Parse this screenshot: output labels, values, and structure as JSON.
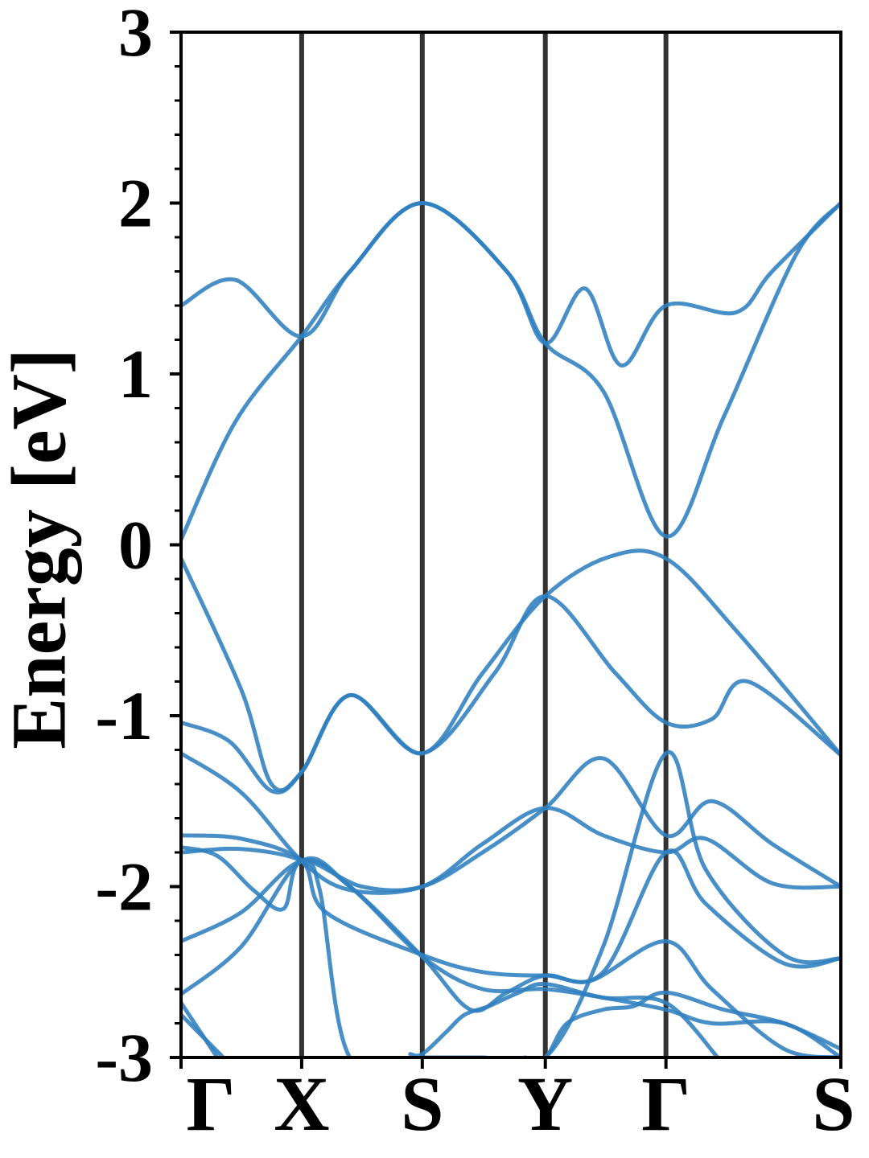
{
  "chart_data": {
    "type": "line",
    "xlabel": "",
    "ylabel": "Energy [eV]",
    "ylim": [
      -3,
      3
    ],
    "xlim": [
      0,
      5.47
    ],
    "y_ticks": [
      -3,
      -2,
      -1,
      0,
      1,
      2,
      3
    ],
    "y_tick_labels": [
      "-3",
      "-2",
      "-1",
      "0",
      "1",
      "2",
      "3"
    ],
    "minor_y_step": 0.2,
    "x_ticks": [
      0,
      1,
      2,
      3.02,
      4.02,
      5.47
    ],
    "x_tick_labels": [
      "Γ",
      "X",
      "S",
      "Y",
      "Γ",
      "S"
    ],
    "divider_lines": [
      1,
      2,
      3.02,
      4.02
    ],
    "grid": false,
    "legend": "none",
    "colors": {
      "band": "#2f7fbf",
      "divider": "#333333",
      "axis": "#000000"
    },
    "series": [
      {
        "x": [
          0,
          0.45,
          1.0,
          1.4,
          2.0,
          2.7,
          3.02,
          3.5,
          4.02,
          4.5,
          5.1,
          5.47
        ],
        "y": [
          1.4,
          1.55,
          1.22,
          1.6,
          2.0,
          1.6,
          1.18,
          0.9,
          0.05,
          0.75,
          1.7,
          2.0
        ]
      },
      {
        "x": [
          0,
          0.45,
          1.0,
          1.4,
          2.0,
          2.7,
          3.02,
          3.35,
          3.65,
          4.02,
          4.6,
          4.9,
          5.47
        ],
        "y": [
          0.03,
          0.72,
          1.22,
          1.6,
          2.0,
          1.6,
          1.18,
          1.5,
          1.05,
          1.4,
          1.36,
          1.6,
          2.0
        ]
      },
      {
        "x": [
          0,
          0.5,
          0.75,
          1.0,
          1.4,
          2.0,
          2.5,
          3.02,
          3.55,
          4.02,
          4.6,
          5.47
        ],
        "y": [
          -0.08,
          -0.85,
          -1.4,
          -1.33,
          -0.88,
          -1.22,
          -0.75,
          -0.3,
          -0.07,
          -0.08,
          -0.5,
          -1.23
        ]
      },
      {
        "x": [
          0,
          0.4,
          0.75,
          1.0,
          1.4,
          2.0,
          2.6,
          3.02,
          3.6,
          4.02,
          4.4,
          4.7,
          5.47
        ],
        "y": [
          -1.04,
          -1.15,
          -1.44,
          -1.33,
          -0.88,
          -1.22,
          -0.75,
          -0.3,
          -0.75,
          -1.04,
          -1.02,
          -0.8,
          -1.23
        ]
      },
      {
        "x": [
          0,
          0.5,
          1.0,
          1.4,
          2.0,
          2.5,
          3.02,
          3.5,
          4.02,
          4.35,
          4.9,
          5.47
        ],
        "y": [
          -1.22,
          -1.45,
          -1.85,
          -2.02,
          -2.0,
          -1.75,
          -1.54,
          -1.7,
          -1.8,
          -1.72,
          -1.98,
          -2.0
        ]
      },
      {
        "x": [
          0,
          0.5,
          1.0,
          1.2,
          2.0,
          2.5,
          3.02,
          3.5,
          4.02,
          4.35,
          5.0,
          5.47
        ],
        "y": [
          -1.7,
          -1.72,
          -1.85,
          -2.15,
          -2.4,
          -2.5,
          -2.52,
          -2.5,
          -1.8,
          -2.1,
          -2.45,
          -2.42
        ]
      },
      {
        "x": [
          0,
          0.5,
          1.0,
          1.15,
          1.4,
          2.0,
          2.5,
          3.02,
          3.5,
          4.02,
          4.35,
          5.0,
          5.47
        ],
        "y": [
          -1.8,
          -1.78,
          -1.85,
          -2.02,
          -3.0,
          -3.0,
          -3.0,
          -3.0,
          -2.35,
          -1.22,
          -1.9,
          -2.4,
          -2.42
        ]
      },
      {
        "x": [
          0,
          0.3,
          0.6,
          0.85,
          1.0,
          1.5,
          2.0,
          2.5,
          3.02,
          3.5,
          4.02,
          4.4,
          4.9,
          5.47
        ],
        "y": [
          -1.77,
          -1.82,
          -2.02,
          -2.13,
          -1.85,
          -2.0,
          -2.0,
          -1.8,
          -1.54,
          -1.25,
          -1.7,
          -1.5,
          -1.75,
          -2.0
        ]
      },
      {
        "x": [
          0,
          0.5,
          1.0,
          1.4,
          2.0,
          2.5,
          3.02,
          3.5,
          4.02,
          4.4,
          5.0,
          5.47
        ],
        "y": [
          -2.32,
          -2.15,
          -1.85,
          -2.0,
          -2.41,
          -2.6,
          -2.6,
          -2.65,
          -2.72,
          -2.8,
          -2.8,
          -3.0
        ]
      },
      {
        "x": [
          0,
          0.5,
          1.0,
          1.4,
          2.0,
          2.4,
          2.7,
          3.02,
          3.4,
          4.02,
          4.4,
          5.0,
          5.47
        ],
        "y": [
          -2.63,
          -2.35,
          -1.85,
          -2.0,
          -2.41,
          -2.72,
          -2.62,
          -2.52,
          -2.55,
          -2.32,
          -2.6,
          -2.95,
          -3.0
        ]
      },
      {
        "x": [
          0,
          0.3
        ],
        "y": [
          -2.68,
          -3.0
        ]
      },
      {
        "x": [
          0,
          0.35
        ],
        "y": [
          -2.75,
          -3.0
        ]
      },
      {
        "x": [
          1.9,
          2.0,
          2.2,
          2.35,
          2.55,
          2.8,
          3.02,
          3.5,
          4.02,
          4.45
        ],
        "y": [
          -2.98,
          -2.98,
          -2.85,
          -2.75,
          -2.7,
          -2.62,
          -2.57,
          -2.65,
          -2.68,
          -3.0
        ]
      },
      {
        "x": [
          2.85,
          3.02,
          3.2,
          3.5,
          3.75,
          4.02,
          4.5,
          5.0,
          5.47
        ],
        "y": [
          -3.0,
          -3.0,
          -2.8,
          -2.72,
          -2.7,
          -2.62,
          -2.72,
          -2.8,
          -2.95
        ]
      }
    ]
  }
}
